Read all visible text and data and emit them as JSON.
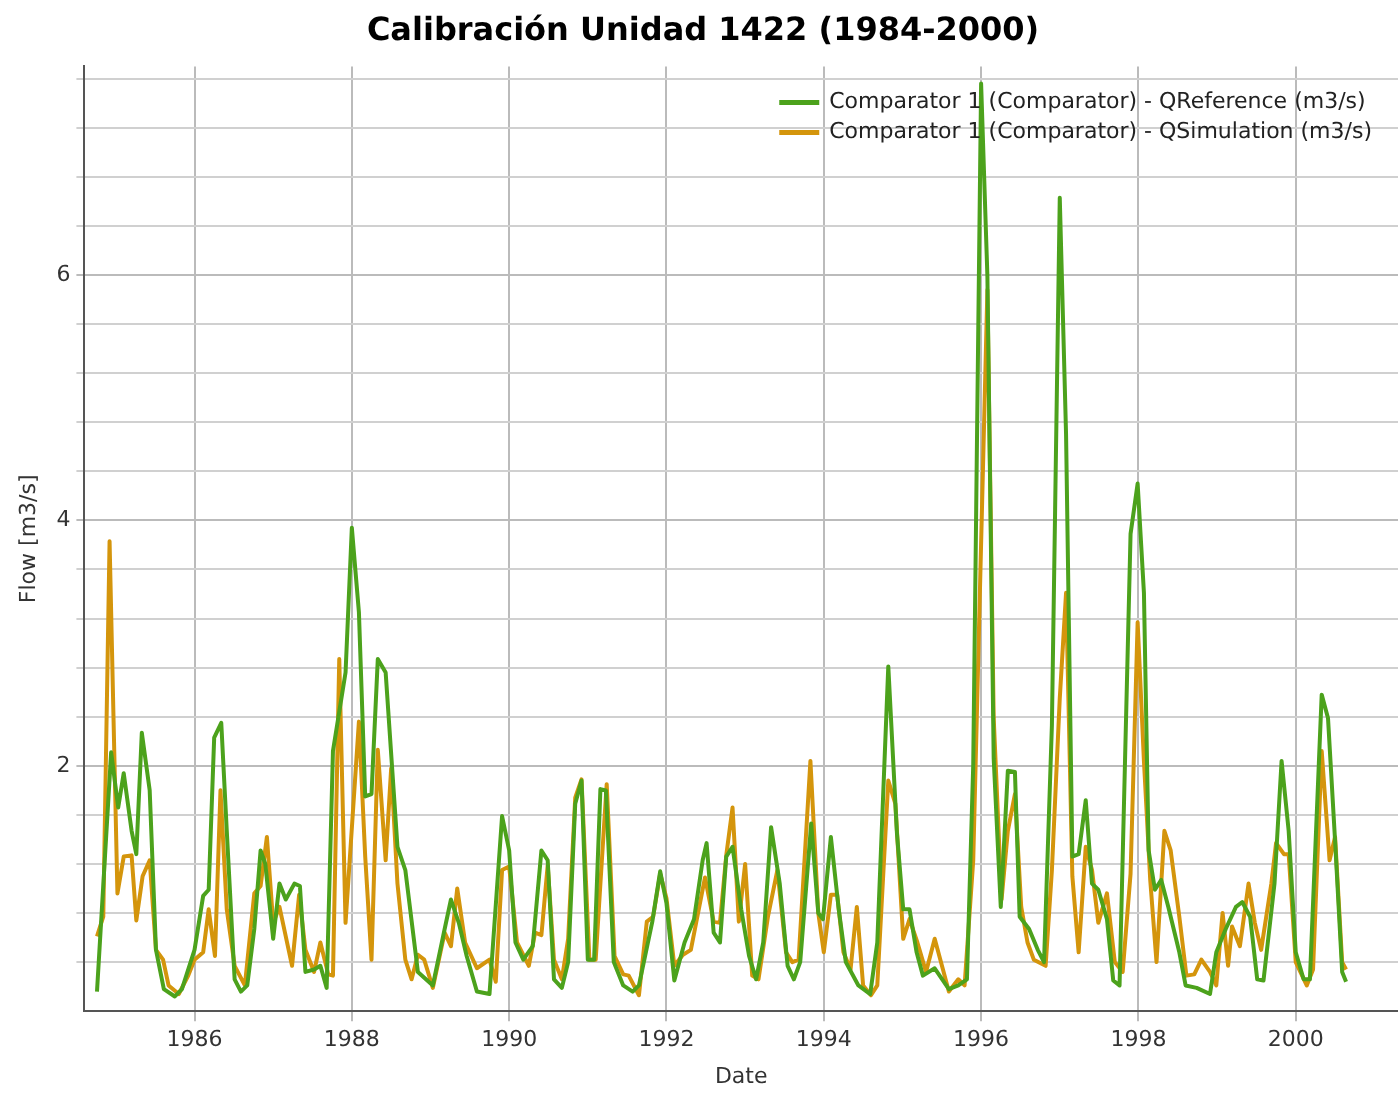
{
  "chart_data": {
    "type": "line",
    "title": "Calibración Unidad 1422 (1984-2000)",
    "xlabel": "Date",
    "ylabel": "Flow [m3/s]",
    "xlim": [
      1984.6,
      2001.3
    ],
    "xticks": [
      1986,
      1988,
      1990,
      1992,
      1994,
      1996,
      1998,
      2000
    ],
    "ylim": [
      0,
      7.7
    ],
    "yticks": [
      {
        "value": 0.4,
        "label": null
      },
      {
        "value": 0.8,
        "label": null
      },
      {
        "value": 1.2,
        "label": null
      },
      {
        "value": 1.6,
        "label": null
      },
      2,
      {
        "value": 2.4,
        "label": null
      },
      {
        "value": 2.8,
        "label": null
      },
      {
        "value": 3.2,
        "label": null
      },
      {
        "value": 3.6,
        "label": null
      },
      4,
      {
        "value": 4.4,
        "label": null
      },
      {
        "value": 4.8,
        "label": null
      },
      {
        "value": 5.2,
        "label": null
      },
      {
        "value": 5.6,
        "label": null
      },
      6,
      {
        "value": 6.4,
        "label": null
      },
      {
        "value": 6.8,
        "label": null
      },
      {
        "value": 7.2,
        "label": null
      },
      {
        "value": 7.6,
        "label": null
      }
    ],
    "grid": true,
    "legend": "top right",
    "marker": "none",
    "line_style": "solid",
    "series": [
      {
        "name": "Comparator 1 (Comparator) - QReference (m3/s)",
        "color": "#4ca21c",
        "x": [
          1984.76,
          1984.94,
          1985.03,
          1985.1,
          1985.2,
          1985.26,
          1985.33,
          1985.43,
          1985.51,
          1985.61,
          1985.75,
          1985.84,
          1986.0,
          1986.11,
          1986.18,
          1986.25,
          1986.34,
          1986.41,
          1986.51,
          1986.59,
          1986.67,
          1986.76,
          1986.84,
          1986.9,
          1987.0,
          1987.08,
          1987.16,
          1987.27,
          1987.34,
          1987.41,
          1987.52,
          1987.6,
          1987.68,
          1987.76,
          1987.92,
          1988.0,
          1988.09,
          1988.17,
          1988.25,
          1988.33,
          1988.43,
          1988.58,
          1988.68,
          1988.84,
          1989.03,
          1989.18,
          1989.26,
          1989.36,
          1989.46,
          1989.59,
          1989.75,
          1989.91,
          1990.0,
          1990.08,
          1990.18,
          1990.3,
          1990.41,
          1990.49,
          1990.57,
          1990.67,
          1990.75,
          1990.84,
          1990.92,
          1991.0,
          1991.08,
          1991.16,
          1991.23,
          1991.33,
          1991.45,
          1991.57,
          1991.65,
          1991.82,
          1991.92,
          1992.0,
          1992.1,
          1992.23,
          1992.35,
          1992.46,
          1992.51,
          1992.6,
          1992.68,
          1992.76,
          1992.84,
          1992.95,
          1993.05,
          1993.14,
          1993.23,
          1993.33,
          1993.44,
          1993.54,
          1993.62,
          1993.7,
          1993.84,
          1993.93,
          1993.99,
          1994.09,
          1994.19,
          1994.28,
          1994.44,
          1994.59,
          1994.68,
          1994.82,
          1994.93,
          1995.01,
          1995.09,
          1995.18,
          1995.26,
          1995.41,
          1995.59,
          1995.71,
          1995.82,
          1995.9,
          1996.0,
          1996.08,
          1996.16,
          1996.25,
          1996.34,
          1996.43,
          1996.49,
          1996.61,
          1996.72,
          1996.8,
          1996.9,
          1997.0,
          1997.08,
          1997.16,
          1997.24,
          1997.33,
          1997.41,
          1997.49,
          1997.6,
          1997.68,
          1997.76,
          1997.9,
          1997.99,
          1998.07,
          1998.13,
          1998.21,
          1998.29,
          1998.38,
          1998.52,
          1998.6,
          1998.74,
          1998.91,
          1998.99,
          1999.11,
          1999.24,
          1999.32,
          1999.42,
          1999.51,
          1999.59,
          1999.73,
          1999.82,
          1999.91,
          2000.0,
          2000.1,
          2000.18,
          2000.33,
          2000.41,
          2000.5,
          2000.59,
          2000.64
        ],
        "values": [
          0.16,
          2.11,
          1.66,
          1.94,
          1.47,
          1.28,
          2.27,
          1.8,
          0.5,
          0.18,
          0.12,
          0.18,
          0.5,
          0.94,
          0.99,
          2.23,
          2.35,
          1.47,
          0.26,
          0.16,
          0.21,
          0.67,
          1.31,
          1.2,
          0.59,
          1.04,
          0.91,
          1.04,
          1.02,
          0.32,
          0.34,
          0.37,
          0.19,
          2.12,
          2.76,
          3.94,
          3.25,
          1.75,
          1.77,
          2.87,
          2.76,
          1.34,
          1.15,
          0.32,
          0.21,
          0.67,
          0.91,
          0.72,
          0.45,
          0.16,
          0.14,
          1.59,
          1.31,
          0.56,
          0.42,
          0.53,
          1.31,
          1.23,
          0.26,
          0.19,
          0.4,
          1.69,
          1.88,
          0.42,
          0.42,
          1.81,
          1.8,
          0.4,
          0.21,
          0.16,
          0.21,
          0.73,
          1.14,
          0.88,
          0.25,
          0.56,
          0.75,
          1.23,
          1.37,
          0.64,
          0.56,
          1.26,
          1.34,
          0.83,
          0.45,
          0.26,
          0.56,
          1.5,
          1.04,
          0.37,
          0.26,
          0.4,
          1.53,
          0.8,
          0.75,
          1.42,
          0.83,
          0.4,
          0.21,
          0.14,
          0.56,
          2.81,
          1.45,
          0.83,
          0.83,
          0.48,
          0.29,
          0.35,
          0.18,
          0.21,
          0.26,
          2.01,
          7.56,
          5.99,
          2.06,
          0.85,
          1.96,
          1.95,
          0.77,
          0.67,
          0.5,
          0.4,
          2.33,
          6.63,
          4.7,
          1.26,
          1.28,
          1.72,
          1.04,
          0.99,
          0.75,
          0.25,
          0.21,
          3.89,
          4.3,
          3.41,
          1.31,
          0.99,
          1.07,
          0.85,
          0.48,
          0.21,
          0.19,
          0.14,
          0.48,
          0.67,
          0.85,
          0.89,
          0.77,
          0.26,
          0.25,
          1.04,
          2.04,
          1.47,
          0.48,
          0.26,
          0.26,
          2.58,
          2.39,
          1.39,
          0.32,
          0.24
        ]
      },
      {
        "name": "Comparator 1 (Comparator) - QSimulation (m3/s)",
        "color": "#d4950c",
        "x": [
          1984.76,
          1984.84,
          1984.92,
          1985.02,
          1985.1,
          1985.2,
          1985.26,
          1985.34,
          1985.43,
          1985.51,
          1985.6,
          1985.67,
          1985.8,
          1985.92,
          1986.0,
          1986.11,
          1986.18,
          1986.26,
          1986.33,
          1986.41,
          1986.51,
          1986.64,
          1986.76,
          1986.84,
          1986.92,
          1987.0,
          1987.08,
          1987.24,
          1987.33,
          1987.41,
          1987.52,
          1987.6,
          1987.7,
          1987.76,
          1987.84,
          1987.92,
          1988.09,
          1988.17,
          1988.25,
          1988.33,
          1988.43,
          1988.5,
          1988.58,
          1988.68,
          1988.76,
          1988.84,
          1988.92,
          1989.03,
          1989.18,
          1989.26,
          1989.34,
          1989.44,
          1989.59,
          1989.75,
          1989.83,
          1989.91,
          1990.0,
          1990.1,
          1990.25,
          1990.33,
          1990.41,
          1990.49,
          1990.57,
          1990.67,
          1990.75,
          1990.84,
          1990.92,
          1991.02,
          1991.1,
          1991.16,
          1991.24,
          1991.34,
          1991.45,
          1991.52,
          1991.65,
          1991.75,
          1991.83,
          1991.92,
          1992.0,
          1992.1,
          1992.21,
          1992.31,
          1992.49,
          1992.6,
          1992.68,
          1992.76,
          1992.84,
          1992.92,
          1993.0,
          1993.09,
          1993.17,
          1993.29,
          1993.41,
          1993.52,
          1993.6,
          1993.68,
          1993.83,
          1993.93,
          1994.0,
          1994.09,
          1994.17,
          1994.25,
          1994.34,
          1994.42,
          1994.5,
          1994.6,
          1994.68,
          1994.82,
          1994.91,
          1995.01,
          1995.09,
          1995.19,
          1995.3,
          1995.41,
          1995.59,
          1995.71,
          1995.79,
          1995.9,
          1996.08,
          1996.16,
          1996.26,
          1996.34,
          1996.43,
          1996.51,
          1996.59,
          1996.67,
          1996.82,
          1996.9,
          1997.0,
          1997.08,
          1997.16,
          1997.24,
          1997.33,
          1997.41,
          1997.49,
          1997.6,
          1997.7,
          1997.8,
          1997.9,
          1997.99,
          1998.07,
          1998.15,
          1998.23,
          1998.33,
          1998.41,
          1998.52,
          1998.61,
          1998.71,
          1998.8,
          1998.91,
          1998.99,
          1999.07,
          1999.14,
          1999.19,
          1999.29,
          1999.4,
          1999.48,
          1999.56,
          1999.69,
          1999.75,
          1999.85,
          1999.91,
          2000.0,
          2000.14,
          2000.22,
          2000.33,
          2000.43,
          2000.5,
          2000.59,
          2000.64
        ],
        "values": [
          0.61,
          0.77,
          3.83,
          0.96,
          1.26,
          1.27,
          0.74,
          1.1,
          1.23,
          0.5,
          0.42,
          0.21,
          0.14,
          0.29,
          0.42,
          0.48,
          0.83,
          0.45,
          1.8,
          0.83,
          0.37,
          0.21,
          0.96,
          1.02,
          1.42,
          0.72,
          0.85,
          0.37,
          0.95,
          0.5,
          0.32,
          0.56,
          0.3,
          0.29,
          2.87,
          0.72,
          2.36,
          1.26,
          0.42,
          2.13,
          1.23,
          1.98,
          1.04,
          0.42,
          0.26,
          0.46,
          0.42,
          0.19,
          0.64,
          0.53,
          1.0,
          0.56,
          0.35,
          0.42,
          0.24,
          1.15,
          1.18,
          0.56,
          0.37,
          0.64,
          0.62,
          1.19,
          0.42,
          0.26,
          0.59,
          1.74,
          1.89,
          0.42,
          0.42,
          1.04,
          1.85,
          0.45,
          0.3,
          0.29,
          0.13,
          0.73,
          0.77,
          1.12,
          0.92,
          0.37,
          0.46,
          0.5,
          1.09,
          0.73,
          0.72,
          1.27,
          1.66,
          0.73,
          1.2,
          0.29,
          0.26,
          0.77,
          1.15,
          0.48,
          0.4,
          0.42,
          2.04,
          0.8,
          0.48,
          0.95,
          0.95,
          0.48,
          0.34,
          0.85,
          0.21,
          0.13,
          0.21,
          1.88,
          1.69,
          0.59,
          0.75,
          0.56,
          0.32,
          0.59,
          0.16,
          0.26,
          0.21,
          1.23,
          5.88,
          2.39,
          0.91,
          1.47,
          1.77,
          0.85,
          0.56,
          0.42,
          0.37,
          1.15,
          2.55,
          3.41,
          1.1,
          0.48,
          1.34,
          1.15,
          0.72,
          0.96,
          0.4,
          0.32,
          1.12,
          3.17,
          2.04,
          1.07,
          0.4,
          1.47,
          1.31,
          0.77,
          0.29,
          0.3,
          0.42,
          0.32,
          0.21,
          0.8,
          0.37,
          0.69,
          0.53,
          1.04,
          0.72,
          0.5,
          1.04,
          1.37,
          1.28,
          1.28,
          0.4,
          0.21,
          0.34,
          2.12,
          1.23,
          1.42,
          0.4,
          0.34
        ]
      }
    ]
  }
}
